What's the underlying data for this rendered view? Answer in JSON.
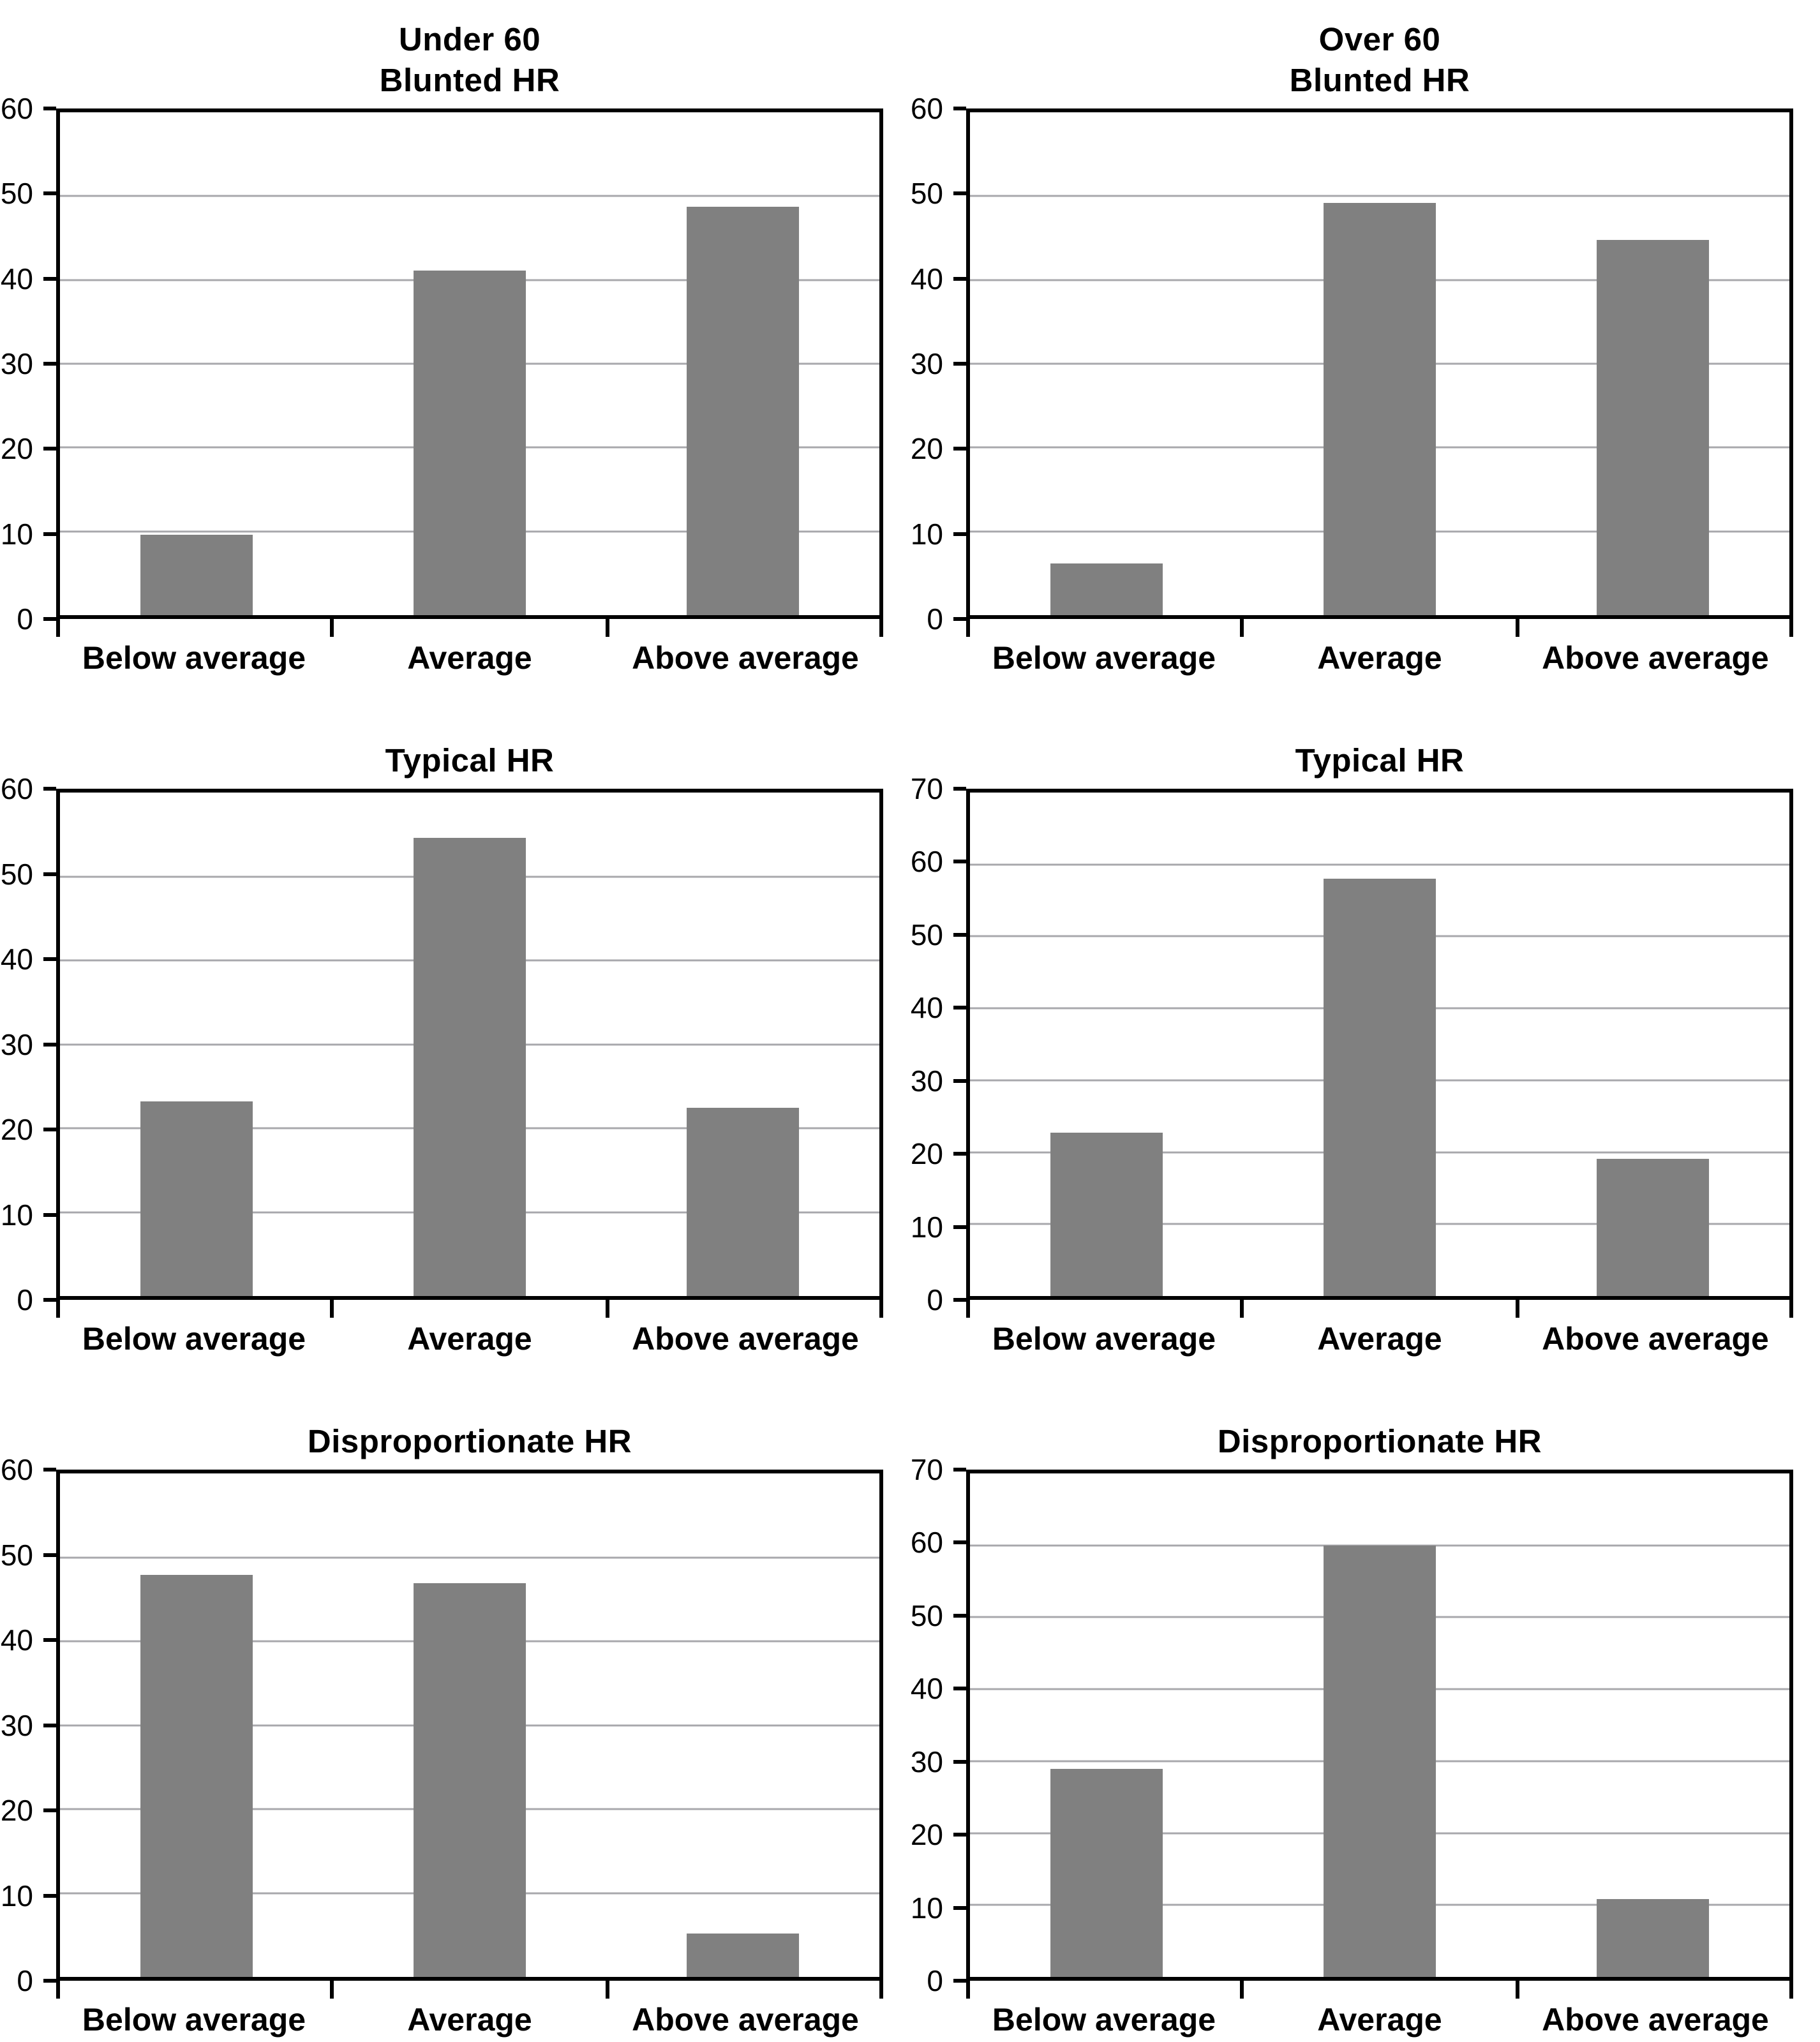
{
  "figure": {
    "layout": "2-columns-3-rows",
    "column_headers": [
      "Under 60",
      "Over 60"
    ],
    "background": "#ffffff"
  },
  "colors": {
    "bar": "#808080",
    "gridline": "#a8a8ac",
    "axis": "#000000",
    "text": "#000000"
  },
  "categories": [
    "Below average",
    "Average",
    "Above average"
  ],
  "chart_data": [
    {
      "type": "bar",
      "group_title": "Under 60",
      "title": "Blunted HR",
      "categories": [
        "Below average",
        "Average",
        "Above average"
      ],
      "values": [
        9.6,
        41.1,
        48.7
      ],
      "xlabel": "",
      "ylabel": "",
      "ylim": [
        0,
        60
      ],
      "ystep": 10,
      "grid": true,
      "legend": "none"
    },
    {
      "type": "bar",
      "group_title": "Over 60",
      "title": "Blunted HR",
      "categories": [
        "Below average",
        "Average",
        "Above average"
      ],
      "values": [
        6.2,
        49.2,
        44.8
      ],
      "xlabel": "",
      "ylabel": "",
      "ylim": [
        0,
        60
      ],
      "ystep": 10,
      "grid": true,
      "legend": "none"
    },
    {
      "type": "bar",
      "group_title": "",
      "title": "Typical HR",
      "categories": [
        "Below average",
        "Average",
        "Above average"
      ],
      "values": [
        23.2,
        54.6,
        22.4
      ],
      "xlabel": "",
      "ylabel": "",
      "ylim": [
        0,
        60
      ],
      "ystep": 10,
      "grid": true,
      "legend": "none"
    },
    {
      "type": "bar",
      "group_title": "",
      "title": "Typical HR",
      "categories": [
        "Below average",
        "Average",
        "Above average"
      ],
      "values": [
        22.7,
        58,
        19.1
      ],
      "xlabel": "",
      "ylabel": "",
      "ylim": [
        0,
        70
      ],
      "ystep": 10,
      "grid": true,
      "legend": "none"
    },
    {
      "type": "bar",
      "group_title": "",
      "title": "Disproportionate HR",
      "categories": [
        "Below average",
        "Average",
        "Above average"
      ],
      "values": [
        47.9,
        46.9,
        5.2
      ],
      "xlabel": "",
      "ylabel": "",
      "ylim": [
        0,
        60
      ],
      "ystep": 10,
      "grid": true,
      "legend": "none"
    },
    {
      "type": "bar",
      "group_title": "",
      "title": "Disproportionate HR",
      "categories": [
        "Below average",
        "Average",
        "Above average"
      ],
      "values": [
        28.9,
        60,
        10.8
      ],
      "xlabel": "",
      "ylabel": "",
      "ylim": [
        0,
        70
      ],
      "ystep": 10,
      "grid": true,
      "legend": "none"
    }
  ]
}
